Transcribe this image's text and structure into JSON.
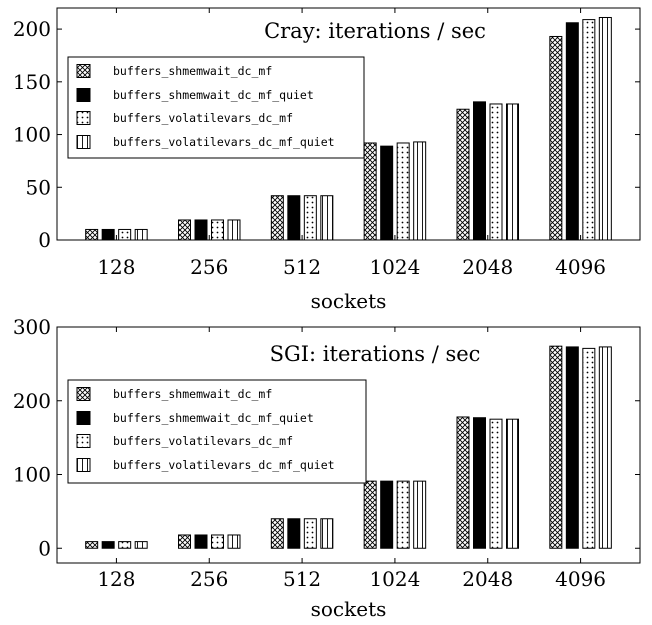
{
  "colors": {
    "ink": "#000000",
    "background": "#ffffff"
  },
  "chart_data": [
    {
      "type": "bar",
      "title": "Cray: iterations / sec",
      "xlabel": "sockets",
      "ylabel": "",
      "ylim": [
        0,
        220
      ],
      "yticks": [
        0,
        50,
        100,
        150,
        200
      ],
      "categories": [
        "128",
        "256",
        "512",
        "1024",
        "2048",
        "4096"
      ],
      "legend_position": "upper-left",
      "series": [
        {
          "name": "buffers_shmemwait_dc_mf",
          "pattern": "crosshatch",
          "values": [
            10,
            19,
            42,
            92,
            124,
            193
          ]
        },
        {
          "name": "buffers_shmemwait_dc_mf_quiet",
          "pattern": "solid",
          "values": [
            10,
            19,
            42,
            89,
            131,
            206
          ]
        },
        {
          "name": "buffers_volatilevars_dc_mf",
          "pattern": "dots",
          "values": [
            10,
            19,
            42,
            92,
            129,
            209
          ]
        },
        {
          "name": "buffers_volatilevars_dc_mf_quiet",
          "pattern": "vertical-lines",
          "values": [
            10,
            19,
            42,
            93,
            129,
            211
          ]
        }
      ]
    },
    {
      "type": "bar",
      "title": "SGI: iterations / sec",
      "xlabel": "sockets",
      "ylabel": "",
      "ylim": [
        -20,
        300
      ],
      "yticks": [
        0,
        100,
        200,
        300
      ],
      "categories": [
        "128",
        "256",
        "512",
        "1024",
        "2048",
        "4096"
      ],
      "legend_position": "upper-left",
      "series": [
        {
          "name": "buffers_shmemwait_dc_mf",
          "pattern": "crosshatch",
          "values": [
            9,
            18,
            40,
            91,
            178,
            274
          ]
        },
        {
          "name": "buffers_shmemwait_dc_mf_quiet",
          "pattern": "solid",
          "values": [
            9,
            18,
            40,
            91,
            177,
            273
          ]
        },
        {
          "name": "buffers_volatilevars_dc_mf",
          "pattern": "dots",
          "values": [
            9,
            18,
            40,
            91,
            175,
            271
          ]
        },
        {
          "name": "buffers_volatilevars_dc_mf_quiet",
          "pattern": "vertical-lines",
          "values": [
            9,
            18,
            40,
            91,
            175,
            273
          ]
        }
      ]
    }
  ]
}
